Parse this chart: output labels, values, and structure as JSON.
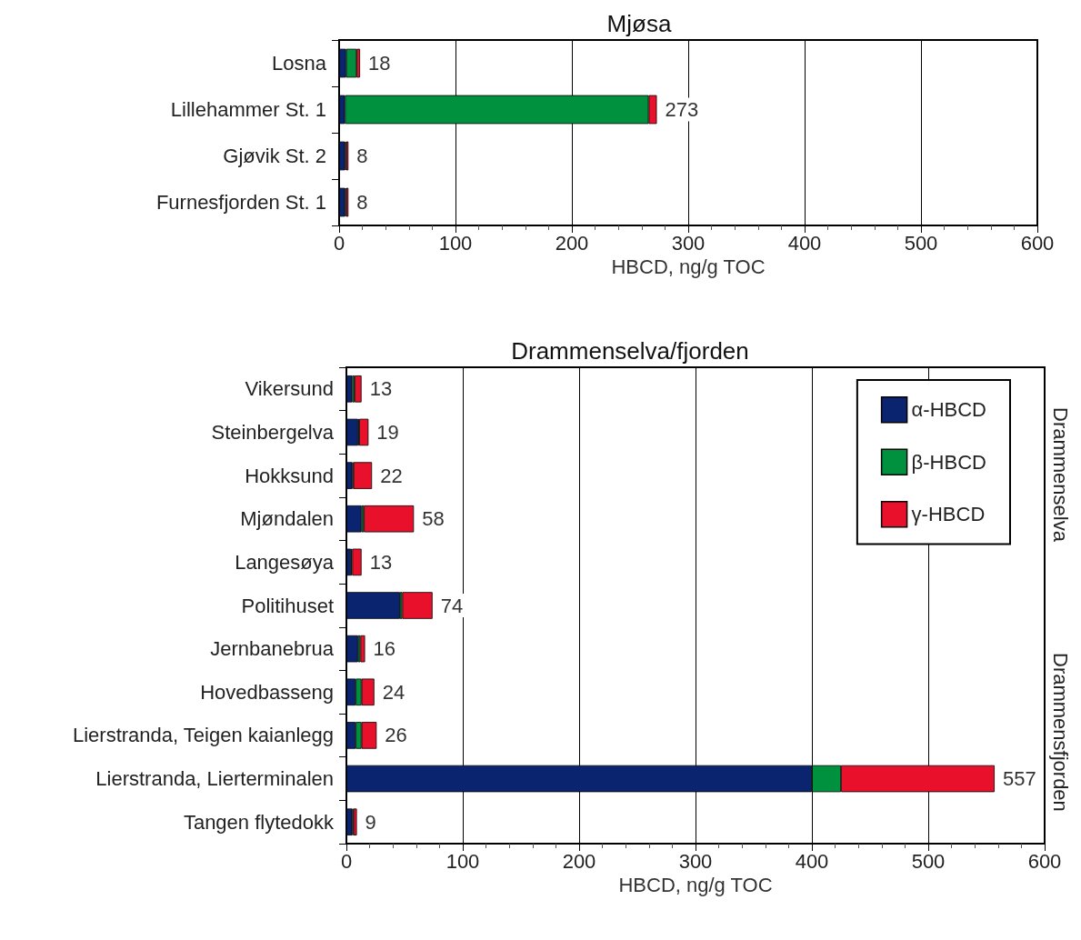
{
  "chart_data": [
    {
      "type": "bar",
      "orientation": "horizontal",
      "stacked": true,
      "title": "Mjøsa",
      "xlabel": "HBCD, ng/g TOC",
      "categories": [
        "Losna",
        "Lillehammer St. 1",
        "Gjøvik St. 2",
        "Furnesfjorden St. 1"
      ],
      "series": [
        {
          "color": "#0a2470",
          "values": [
            6,
            5,
            5,
            5
          ]
        },
        {
          "color": "#00913f",
          "values": [
            9,
            261,
            1,
            1
          ]
        },
        {
          "color": "#e8102a",
          "values": [
            3,
            7,
            2,
            2
          ]
        }
      ],
      "totals": [
        "18",
        "273",
        "8",
        "8"
      ],
      "xlim": [
        0,
        600
      ],
      "xticks": [
        0,
        100,
        200,
        300,
        400,
        500,
        600
      ],
      "grid": "x",
      "legend": false
    },
    {
      "type": "bar",
      "orientation": "horizontal",
      "stacked": true,
      "title": "Drammenselva/fjorden",
      "xlabel": "HBCD, ng/g TOC",
      "categories": [
        "Vikersund",
        "Steinbergelva",
        "Hokksund",
        "Mjøndalen",
        "Langesøya",
        "Politihuset",
        "Jernbanebrua",
        "Hovedbasseng",
        "Lierstranda, Teigen kaianlegg",
        "Lierstranda, Lierterminalen",
        "Tangen flytedokk"
      ],
      "series": [
        {
          "name": "α-HBCD",
          "color": "#0a2470",
          "values": [
            5,
            10,
            5,
            13,
            4,
            46,
            10,
            8,
            8,
            400,
            5
          ]
        },
        {
          "name": "β-HBCD",
          "color": "#00913f",
          "values": [
            2,
            1,
            1,
            2,
            1,
            2,
            2,
            5,
            5,
            25,
            1
          ]
        },
        {
          "name": "γ-HBCD",
          "color": "#e8102a",
          "values": [
            6,
            8,
            16,
            43,
            8,
            26,
            4,
            11,
            13,
            132,
            3
          ]
        }
      ],
      "totals": [
        "13",
        "19",
        "22",
        "58",
        "13",
        "74",
        "16",
        "24",
        "26",
        "557",
        "9"
      ],
      "xlim": [
        0,
        600
      ],
      "xticks": [
        0,
        100,
        200,
        300,
        400,
        500,
        600
      ],
      "grid": "x",
      "legend": "top right",
      "annotations": [
        "Drammenselva",
        "Drammensfjorden"
      ]
    }
  ]
}
